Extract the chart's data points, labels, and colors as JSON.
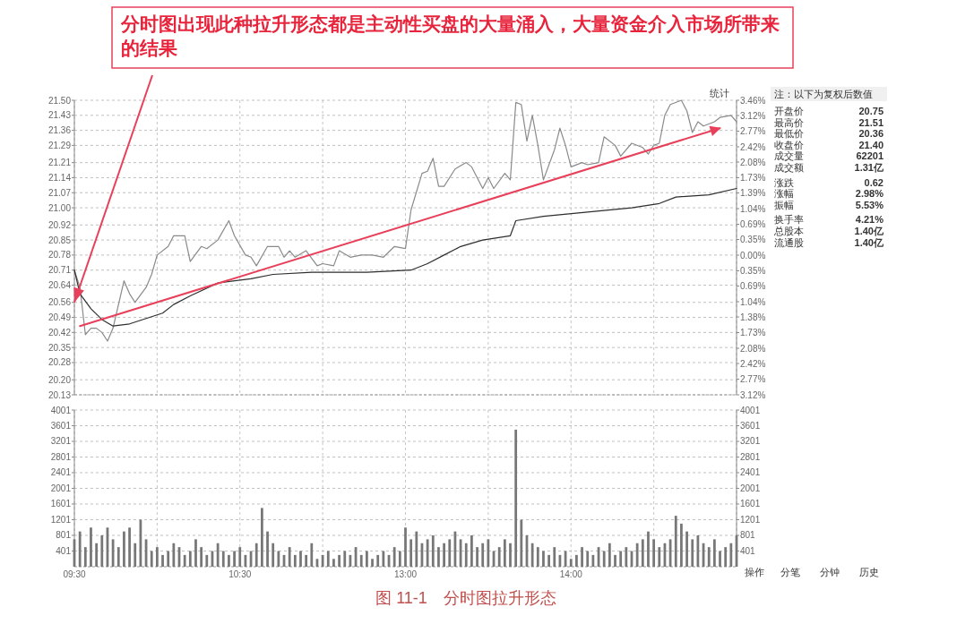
{
  "chart_data": [
    {
      "type": "line",
      "tick_labels": "y",
      "categories": [
        "09:30",
        null,
        null,
        null,
        null,
        null,
        null,
        null,
        null,
        null,
        null,
        null,
        null,
        null,
        null,
        null,
        null,
        null,
        null,
        null,
        null,
        null,
        null,
        null,
        null,
        null,
        null,
        null,
        null,
        null,
        "10:30",
        null,
        null,
        null,
        null,
        null,
        null,
        null,
        null,
        null,
        null,
        null,
        null,
        null,
        null,
        null,
        null,
        null,
        null,
        null,
        null,
        null,
        null,
        null,
        null,
        null,
        null,
        null,
        null,
        null,
        "13:00",
        null,
        null,
        null,
        null,
        null,
        null,
        null,
        null,
        null,
        null,
        null,
        null,
        null,
        null,
        null,
        null,
        null,
        null,
        null,
        null,
        null,
        null,
        null,
        null,
        null,
        null,
        null,
        null,
        null,
        "14:00",
        null,
        null,
        null,
        null,
        null,
        null,
        null,
        null,
        null,
        null,
        null,
        null,
        null,
        null,
        null,
        null,
        null,
        null,
        null,
        null,
        null,
        null,
        null,
        null,
        null,
        null,
        null,
        null,
        null,
        null
      ],
      "ylim": [
        20.13,
        21.5
      ],
      "yticks": [
        {
          "value": 21.5,
          "label": "21.50"
        },
        21.43,
        21.36,
        21.29,
        21.21,
        21.14,
        21.07,
        {
          "value": 21.0,
          "label": "21.00"
        },
        20.92,
        20.85,
        20.78,
        20.71,
        20.64,
        20.56,
        20.49,
        20.42,
        20.35,
        20.28,
        {
          "value": 20.2,
          "label": "20.20"
        },
        20.13
      ],
      "y2lim": [
        -3.12,
        3.46
      ],
      "y2ticks": [
        {
          "value": 3.46,
          "label": "3.46%"
        },
        {
          "value": 3.12,
          "label": "3.12%"
        },
        {
          "value": 2.77,
          "label": "2.77%"
        },
        {
          "value": 2.42,
          "label": "2.42%"
        },
        {
          "value": 2.08,
          "label": "2.08%"
        },
        {
          "value": 1.73,
          "label": "1.73%"
        },
        {
          "value": 1.39,
          "label": "1.39%"
        },
        {
          "value": 1.04,
          "label": "1.04%"
        },
        {
          "value": 0.69,
          "label": "0.69%"
        },
        {
          "value": 0.35,
          "label": "0.35%"
        },
        {
          "value": 0,
          "label": "0.00%"
        },
        {
          "value": -0.35,
          "label": "0.35%"
        },
        {
          "value": -0.69,
          "label": "0.69%"
        },
        {
          "value": -1.04,
          "label": "1.04%"
        },
        {
          "value": -1.38,
          "label": "1.38%"
        },
        {
          "value": -1.73,
          "label": "1.73%"
        },
        {
          "value": -2.08,
          "label": "2.08%"
        },
        {
          "value": -2.42,
          "label": "2.42%"
        },
        {
          "value": -2.77,
          "label": "2.77%"
        },
        {
          "value": -3.12,
          "label": "3.12%"
        }
      ],
      "grid": true,
      "line_style": "solid",
      "series": [
        {
          "color": "#8a8a8a",
          "values": [
            20.71,
            20.63,
            20.41,
            20.44,
            20.44,
            20.42,
            20.38,
            20.44,
            null,
            20.66,
            20.6,
            20.56,
            null,
            20.63,
            20.69,
            20.78,
            null,
            20.82,
            20.87,
            null,
            20.87,
            20.75,
            null,
            20.82,
            20.81,
            null,
            20.85,
            null,
            20.94,
            20.87,
            null,
            20.78,
            20.77,
            20.73,
            null,
            20.82,
            null,
            20.82,
            20.77,
            20.8,
            20.77,
            null,
            20.8,
            null,
            20.73,
            20.74,
            null,
            20.73,
            20.8,
            null,
            20.77,
            null,
            20.78,
            null,
            20.78,
            null,
            20.77,
            null,
            20.82,
            null,
            20.81,
            20.99,
            null,
            21.16,
            21.17,
            21.23,
            21.1,
            21.1,
            null,
            21.18,
            null,
            21.21,
            21.19,
            null,
            21.09,
            21.14,
            21.09,
            null,
            21.16,
            21.13,
            21.49,
            21.48,
            21.31,
            21.43,
            21.29,
            21.13,
            null,
            21.27,
            21.37,
            21.29,
            21.19,
            null,
            21.21,
            21.2,
            null,
            21.21,
            21.33,
            null,
            21.29,
            21.24,
            null,
            21.3,
            null,
            21.28,
            21.25,
            21.29,
            21.3,
            21.43,
            21.48,
            null,
            21.5,
            21.45,
            21.35,
            21.4,
            21.38,
            null,
            21.4,
            21.42,
            null,
            21.43,
            21.4
          ]
        },
        {
          "color": "#2e2e2e",
          "values": [
            20.71,
            20.6,
            null,
            20.53,
            null,
            20.48,
            null,
            20.45,
            null,
            null,
            20.46,
            null,
            null,
            null,
            null,
            null,
            20.51,
            null,
            20.55,
            null,
            null,
            20.59,
            null,
            null,
            null,
            null,
            20.65,
            null,
            null,
            null,
            null,
            null,
            20.67,
            null,
            null,
            null,
            20.69,
            null,
            null,
            null,
            null,
            null,
            null,
            20.7,
            null,
            null,
            null,
            null,
            null,
            null,
            null,
            null,
            null,
            20.7,
            null,
            null,
            null,
            null,
            null,
            null,
            null,
            20.71,
            null,
            null,
            20.74,
            null,
            null,
            20.78,
            null,
            null,
            20.82,
            null,
            null,
            null,
            20.85,
            null,
            null,
            null,
            null,
            20.87,
            20.94,
            null,
            null,
            null,
            null,
            20.96,
            null,
            null,
            null,
            null,
            null,
            null,
            null,
            20.98,
            null,
            null,
            null,
            null,
            null,
            null,
            null,
            21.0,
            null,
            null,
            null,
            null,
            21.02,
            null,
            null,
            21.05,
            null,
            null,
            null,
            null,
            null,
            21.06,
            null,
            null,
            null,
            null,
            21.09
          ]
        },
        {
          "color": "#e8405a",
          "values": [
            null,
            20.45,
            null,
            null,
            null,
            null,
            null,
            null,
            null,
            null,
            null,
            null,
            null,
            null,
            null,
            null,
            null,
            null,
            null,
            null,
            null,
            null,
            null,
            null,
            null,
            null,
            null,
            null,
            null,
            null,
            null,
            null,
            null,
            null,
            null,
            null,
            null,
            null,
            null,
            null,
            null,
            null,
            null,
            null,
            null,
            null,
            null,
            null,
            null,
            null,
            null,
            null,
            null,
            null,
            null,
            null,
            null,
            null,
            null,
            null,
            null,
            null,
            null,
            null,
            null,
            null,
            null,
            null,
            null,
            null,
            null,
            null,
            null,
            null,
            null,
            null,
            null,
            null,
            null,
            null,
            null,
            null,
            null,
            null,
            null,
            null,
            null,
            null,
            null,
            null,
            null,
            null,
            null,
            null,
            null,
            null,
            null,
            null,
            null,
            null,
            null,
            null,
            null,
            null,
            null,
            null,
            null,
            null,
            null,
            null,
            null,
            null,
            null,
            null,
            null,
            null,
            null,
            21.37,
            null,
            null,
            null
          ]
        }
      ],
      "annotations": [
        {
          "text": "分时图出现此种拉升形态都是主动性买盘的大量涌入，大量资金介入市场所带来的结果",
          "x": "09:30",
          "y": 20.56
        },
        "统计",
        "图 11-1　分时图拉升形态"
      ]
    },
    {
      "type": "bar",
      "categories": [
        "09:30",
        null,
        null,
        null,
        null,
        null,
        null,
        null,
        null,
        null,
        null,
        null,
        null,
        null,
        null,
        null,
        null,
        null,
        null,
        null,
        null,
        null,
        null,
        null,
        null,
        null,
        null,
        null,
        null,
        null,
        "10:30",
        null,
        null,
        null,
        null,
        null,
        null,
        null,
        null,
        null,
        null,
        null,
        null,
        null,
        null,
        null,
        null,
        null,
        null,
        null,
        null,
        null,
        null,
        null,
        null,
        null,
        null,
        null,
        null,
        null,
        "13:00",
        null,
        null,
        null,
        null,
        null,
        null,
        null,
        null,
        null,
        null,
        null,
        null,
        null,
        null,
        null,
        null,
        null,
        null,
        null,
        null,
        null,
        null,
        null,
        null,
        null,
        null,
        null,
        null,
        null,
        "14:00",
        null,
        null,
        null,
        null,
        null,
        null,
        null,
        null,
        null,
        null,
        null,
        null,
        null,
        null,
        null,
        null,
        null,
        null,
        null,
        null,
        null,
        null,
        null,
        null,
        null,
        null,
        null,
        null,
        null,
        null
      ],
      "ylim": [
        0,
        4001
      ],
      "yticks": [
        401,
        801,
        1201,
        1601,
        2001,
        2401,
        2801,
        3201,
        3601,
        4001
      ],
      "y2lim": [
        0,
        4001
      ],
      "y2ticks": [
        401,
        801,
        1201,
        1601,
        2001,
        2401,
        2801,
        3201,
        3601,
        4001
      ],
      "grid": true,
      "color": "#777777",
      "values": [
        700,
        900,
        500,
        1000,
        600,
        800,
        1000,
        700,
        500,
        900,
        1000,
        600,
        1200,
        700,
        400,
        500,
        300,
        400,
        600,
        500,
        300,
        400,
        700,
        500,
        300,
        400,
        600,
        400,
        300,
        400,
        500,
        300,
        400,
        600,
        1500,
        900,
        600,
        400,
        300,
        500,
        300,
        400,
        300,
        600,
        200,
        300,
        400,
        200,
        300,
        400,
        300,
        500,
        300,
        400,
        200,
        300,
        400,
        300,
        500,
        400,
        1000,
        700,
        900,
        600,
        700,
        800,
        500,
        600,
        700,
        900,
        700,
        600,
        800,
        500,
        600,
        700,
        400,
        500,
        700,
        600,
        3500,
        1200,
        800,
        600,
        500,
        400,
        300,
        500,
        300,
        400,
        200,
        300,
        500,
        400,
        300,
        500,
        400,
        600,
        300,
        400,
        500,
        400,
        600,
        700,
        900,
        700,
        500,
        600,
        700,
        1300,
        1100,
        900,
        700,
        800,
        600,
        500,
        700,
        400,
        500,
        600,
        800
      ]
    },
    {
      "type": "other",
      "annotations": [
        "注：以下为复权后数值",
        "开盘价",
        "20.75",
        "最高价",
        "21.51",
        "最低价",
        "20.36",
        "收盘价",
        "21.40",
        "成交量",
        "62201",
        "成交额",
        "1.31亿",
        "涨跌",
        "0.62",
        "涨幅",
        "2.98%",
        "振幅",
        "5.53%",
        "换手率",
        "4.21%",
        "总股本",
        "1.40亿",
        "流通股",
        "1.40亿",
        "操作",
        "分笔",
        "分钟",
        "历史"
      ]
    }
  ]
}
